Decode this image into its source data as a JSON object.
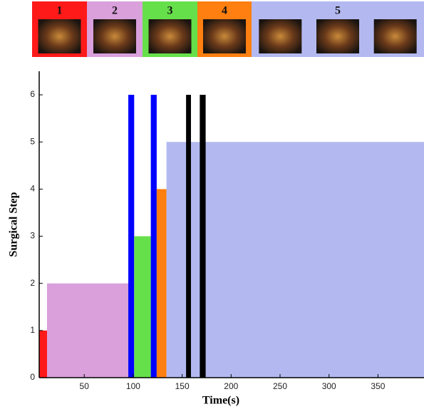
{
  "chart_data": {
    "type": "step-region",
    "phases": [
      {
        "label": "1",
        "color": "#ff1a1a"
      },
      {
        "label": "2",
        "color": "#d9a0dc"
      },
      {
        "label": "3",
        "color": "#66e04a"
      },
      {
        "label": "4",
        "color": "#ff7f10"
      },
      {
        "label": "5",
        "color": "#b3b9f0"
      }
    ],
    "x_label": "Time(s)",
    "y_label": "Surgical Step",
    "xlim": [
      4,
      397
    ],
    "ylim": [
      0,
      6.5
    ],
    "xticks": [
      50,
      100,
      150,
      200,
      250,
      300,
      350
    ],
    "yticks": [
      0,
      1,
      2,
      3,
      4,
      5,
      6
    ],
    "segments": [
      {
        "start": 4,
        "end": 12,
        "value": 1,
        "color": "#ff1a1a"
      },
      {
        "start": 12,
        "end": 95,
        "value": 2,
        "color": "#d9a0dc"
      },
      {
        "start": 95,
        "end": 101,
        "value": 6,
        "color": "#0000ff"
      },
      {
        "start": 101,
        "end": 118,
        "value": 3,
        "color": "#66e04a"
      },
      {
        "start": 118,
        "end": 124,
        "value": 6,
        "color": "#0000ff"
      },
      {
        "start": 124,
        "end": 134,
        "value": 4,
        "color": "#ff7f10"
      },
      {
        "start": 134,
        "end": 397,
        "value": 5,
        "color": "#b3b9f0"
      },
      {
        "start": 154,
        "end": 159,
        "value": 6,
        "color": "#000000"
      },
      {
        "start": 168,
        "end": 174,
        "value": 6,
        "color": "#000000"
      }
    ]
  }
}
